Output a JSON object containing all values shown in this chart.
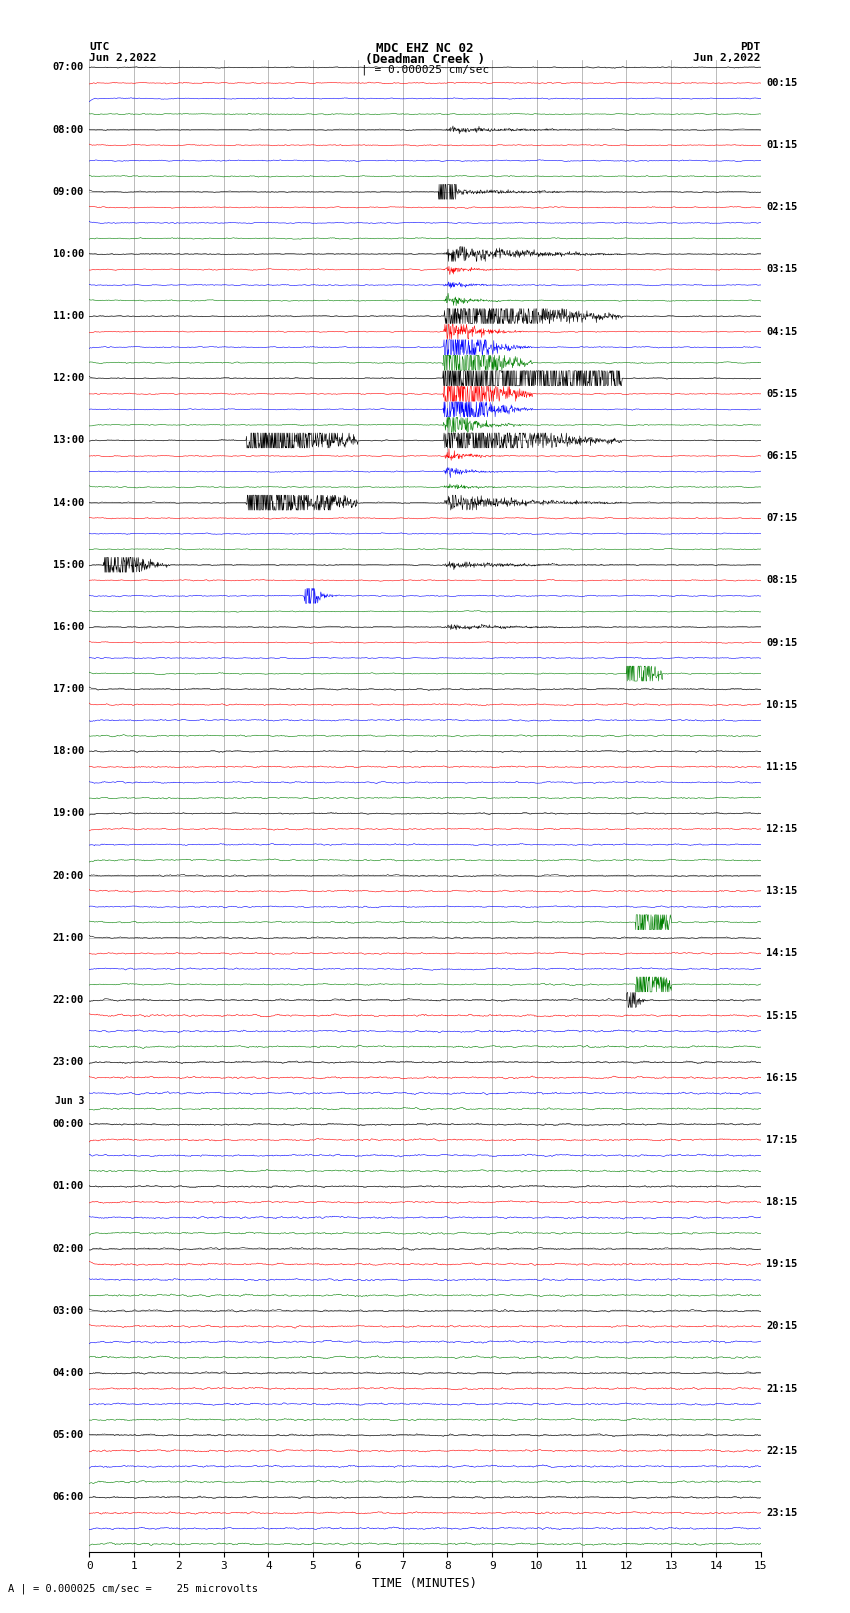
{
  "title_line1": "MDC EHZ NC 02",
  "title_line2": "(Deadman Creek )",
  "title_line3": "| = 0.000025 cm/sec",
  "utc_label": "UTC",
  "utc_date": "Jun 2,2022",
  "pdt_label": "PDT",
  "pdt_date": "Jun 2,2022",
  "left_times": [
    "07:00",
    "08:00",
    "09:00",
    "10:00",
    "11:00",
    "12:00",
    "13:00",
    "14:00",
    "15:00",
    "16:00",
    "17:00",
    "18:00",
    "19:00",
    "20:00",
    "21:00",
    "22:00",
    "23:00",
    "Jun 3",
    "00:00",
    "01:00",
    "02:00",
    "03:00",
    "04:00",
    "05:00",
    "06:00"
  ],
  "right_times": [
    "00:15",
    "01:15",
    "02:15",
    "03:15",
    "04:15",
    "05:15",
    "06:15",
    "07:15",
    "08:15",
    "09:15",
    "10:15",
    "11:15",
    "12:15",
    "13:15",
    "14:15",
    "15:15",
    "16:15",
    "17:15",
    "18:15",
    "19:15",
    "20:15",
    "21:15",
    "22:15",
    "23:15"
  ],
  "xlabel": "TIME (MINUTES)",
  "scale_label": "A | = 0.000025 cm/sec =    25 microvolts",
  "x_ticks": [
    0,
    1,
    2,
    3,
    4,
    5,
    6,
    7,
    8,
    9,
    10,
    11,
    12,
    13,
    14,
    15
  ],
  "n_rows": 96,
  "colors": [
    "black",
    "red",
    "blue",
    "green"
  ],
  "bg_color": "white",
  "fig_width": 8.5,
  "fig_height": 16.13
}
